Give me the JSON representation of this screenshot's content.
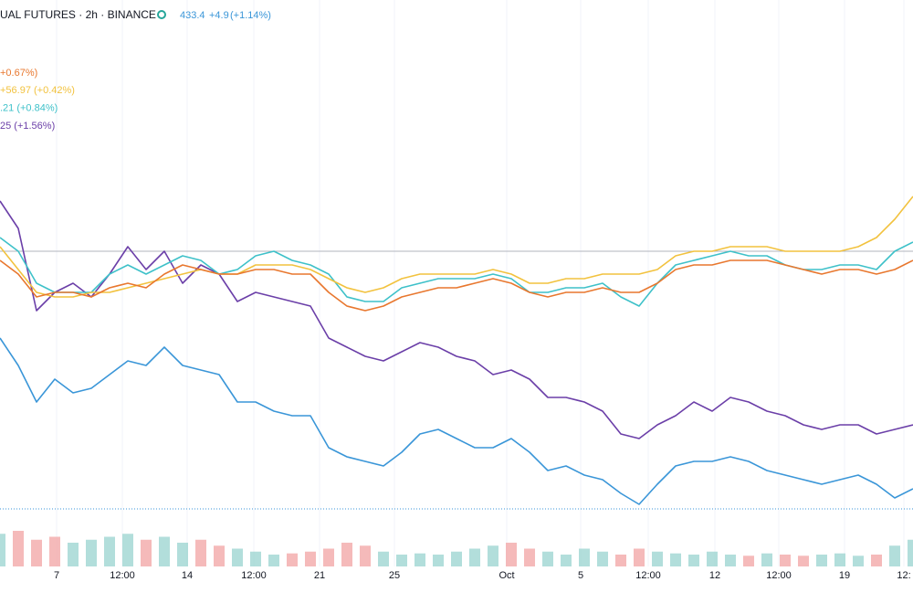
{
  "chart_data": {
    "type": "line",
    "header": {
      "symbol": "UAL FUTURES · 2h · BINANCE",
      "price": "433.4",
      "change": "+4.9",
      "change_pct": "(+1.14%)"
    },
    "legend": [
      "+0.67%)",
      "+56.97 (+0.42%)",
      ".21 (+0.84%)",
      "25 (+1.56%)"
    ],
    "x": [
      0,
      1,
      2,
      3,
      4,
      5,
      6,
      7,
      8,
      9,
      10,
      11,
      12,
      13,
      14,
      15,
      16,
      17,
      18,
      19,
      20,
      21,
      22,
      23,
      24,
      25,
      26,
      27,
      28,
      29,
      30,
      31,
      32,
      33,
      34,
      35,
      36,
      37,
      38,
      39,
      40,
      41,
      42,
      43,
      44,
      45,
      46,
      47,
      48,
      49,
      50
    ],
    "xlim": [
      0,
      50
    ],
    "xticks": [
      {
        "value": 3.1,
        "label": "7"
      },
      {
        "value": 6.7,
        "label": "12:00"
      },
      {
        "value": 10.25,
        "label": "14"
      },
      {
        "value": 13.9,
        "label": "12:00"
      },
      {
        "value": 17.5,
        "label": "21"
      },
      {
        "value": 21.6,
        "label": "25"
      },
      {
        "value": 27.75,
        "label": "Oct"
      },
      {
        "value": 31.8,
        "label": "5"
      },
      {
        "value": 35.5,
        "label": "12:00"
      },
      {
        "value": 39.15,
        "label": "12"
      },
      {
        "value": 42.65,
        "label": "12:00"
      },
      {
        "value": 46.25,
        "label": "19"
      },
      {
        "value": 49.5,
        "label": "12:"
      }
    ],
    "ylim": [
      -27.5,
      27.5
    ],
    "baseline": 0,
    "grid": true,
    "series": [
      {
        "color": "#e8772e",
        "values": [
          -1,
          -2.5,
          -5,
          -4.5,
          -4.5,
          -5,
          -4,
          -3.5,
          -4,
          -2.5,
          -1.5,
          -2,
          -2.5,
          -2.5,
          -2,
          -2,
          -2.5,
          -2.5,
          -4.5,
          -6,
          -6.5,
          -6,
          -5,
          -4.5,
          -4,
          -4,
          -3.5,
          -3,
          -3.5,
          -4.5,
          -5,
          -4.5,
          -4.5,
          -4,
          -4.5,
          -4.5,
          -3.5,
          -2,
          -1.5,
          -1.5,
          -1,
          -1,
          -1,
          -1.5,
          -2,
          -2.5,
          -2,
          -2,
          -2.5,
          -2,
          -1
        ]
      },
      {
        "color": "#f2c23e",
        "values": [
          0.5,
          -2,
          -4.5,
          -5,
          -5,
          -4.5,
          -4.5,
          -4,
          -3.5,
          -3,
          -2.5,
          -2,
          -2.5,
          -2.5,
          -1.5,
          -1.5,
          -1.5,
          -2,
          -3,
          -4,
          -4.5,
          -4,
          -3,
          -2.5,
          -2.5,
          -2.5,
          -2.5,
          -2,
          -2.5,
          -3.5,
          -3.5,
          -3,
          -3,
          -2.5,
          -2.5,
          -2.5,
          -2,
          -0.5,
          0,
          0,
          0.5,
          0.5,
          0.5,
          0,
          0,
          0,
          0,
          0.5,
          1.5,
          3.5,
          6
        ]
      },
      {
        "color": "#3ec1c9",
        "values": [
          1.5,
          0,
          -3.5,
          -4.5,
          -4.5,
          -4.5,
          -2.5,
          -1.5,
          -2.5,
          -1.5,
          -0.5,
          -1,
          -2.5,
          -2,
          -0.5,
          0,
          -1,
          -1.5,
          -2.5,
          -5,
          -5.5,
          -5.5,
          -4,
          -3.5,
          -3,
          -3,
          -3,
          -2.5,
          -3,
          -4.5,
          -4.5,
          -4,
          -4,
          -3.5,
          -5,
          -6,
          -3.5,
          -1.5,
          -1,
          -0.5,
          0,
          -0.5,
          -0.5,
          -1.5,
          -2,
          -2,
          -1.5,
          -1.5,
          -2,
          0,
          1
        ]
      },
      {
        "color": "#6b3fa8",
        "values": [
          5.5,
          2.5,
          -6.5,
          -4.5,
          -3.5,
          -5,
          -2.5,
          0.5,
          -2,
          0,
          -3.5,
          -1.5,
          -2.5,
          -5.5,
          -4.5,
          -5,
          -5.5,
          -6,
          -9.5,
          -10.5,
          -11.5,
          -12,
          -11,
          -10,
          -10.5,
          -11.5,
          -12,
          -13.5,
          -13,
          -14,
          -16,
          -16,
          -16.5,
          -17.5,
          -20,
          -20.5,
          -19,
          -18,
          -16.5,
          -17.5,
          -16,
          -16.5,
          -17.5,
          -18,
          -19,
          -19.5,
          -19,
          -19,
          -20,
          -19.5,
          -19
        ]
      },
      {
        "color": "#3a96d8",
        "values": [
          -9.5,
          -12.5,
          -16.5,
          -14,
          -15.5,
          -15,
          -13.5,
          -12,
          -12.5,
          -10.5,
          -12.5,
          -13,
          -13.5,
          -16.5,
          -16.5,
          -17.5,
          -18,
          -18,
          -21.5,
          -22.5,
          -23,
          -23.5,
          -22,
          -20,
          -19.5,
          -20.5,
          -21.5,
          -21.5,
          -20.5,
          -22,
          -24,
          -23.5,
          -24.5,
          -25,
          -26.5,
          -27.7,
          -25.5,
          -23.5,
          -23,
          -23,
          -22.5,
          -23,
          -24,
          -24.5,
          -25,
          -25.5,
          -25,
          -24.5,
          -25.5,
          -27,
          -26
        ]
      }
    ],
    "volume": {
      "up_color": "#9fd6d2",
      "down_color": "#f2a9a9",
      "ylim": [
        0,
        100
      ],
      "values": [
        55,
        60,
        45,
        50,
        40,
        45,
        50,
        55,
        45,
        50,
        40,
        45,
        35,
        30,
        25,
        20,
        22,
        25,
        30,
        40,
        35,
        25,
        20,
        22,
        20,
        25,
        30,
        35,
        40,
        30,
        25,
        20,
        30,
        25,
        20,
        30,
        25,
        22,
        20,
        25,
        20,
        18,
        22,
        20,
        18,
        20,
        22,
        18,
        20,
        35,
        45
      ]
    }
  }
}
